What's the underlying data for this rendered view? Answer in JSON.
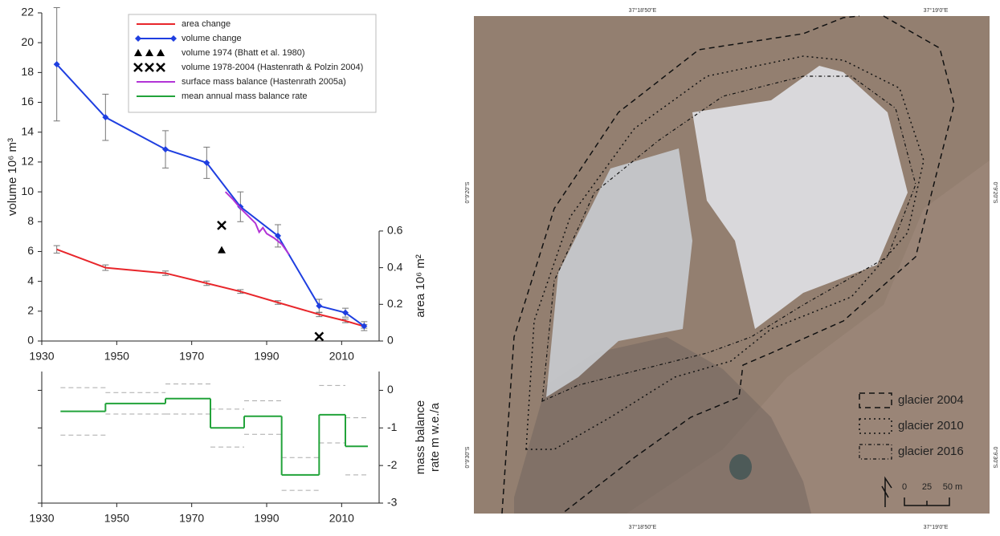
{
  "chart_data": [
    {
      "type": "line",
      "ylabel": "volume 10⁶ m³",
      "y2label": "area 10⁶ m²",
      "xlim": [
        1930,
        2020
      ],
      "xticks": [
        1930,
        1950,
        1970,
        1990,
        2010
      ],
      "ylim": [
        0,
        22
      ],
      "yticks": [
        0,
        2,
        4,
        6,
        8,
        10,
        12,
        14,
        16,
        18,
        20,
        22
      ],
      "y2lim": [
        0,
        1.79
      ],
      "y2ticks": [
        0,
        0.2,
        0.4,
        0.6
      ],
      "error_color": "#777777",
      "series": [
        {
          "name": "area change",
          "color": "#e8262b",
          "axis": "y2",
          "line": true,
          "marker": null,
          "x": [
            1934,
            1947,
            1963,
            1974,
            1983,
            1993,
            2004,
            2011,
            2016
          ],
          "values": [
            0.5,
            0.4,
            0.37,
            0.315,
            0.27,
            0.21,
            0.145,
            0.11,
            0.08
          ],
          "errors": [
            0.02,
            0.015,
            0.012,
            0.012,
            0.01,
            0.01,
            0.012,
            0.01,
            0.01
          ]
        },
        {
          "name": "volume change",
          "color": "#1f3fe0",
          "line": true,
          "marker": "diamond",
          "x": [
            1934,
            1947,
            1963,
            1974,
            1983,
            1993,
            2004,
            2011,
            2016
          ],
          "values": [
            18.55,
            15.0,
            12.85,
            11.95,
            9.0,
            7.05,
            2.35,
            1.9,
            1.0
          ],
          "errors": [
            3.8,
            1.55,
            1.25,
            1.05,
            1.0,
            0.75,
            0.45,
            0.3,
            0.3
          ]
        },
        {
          "name": "volume 1974 (Bhatt et al. 1980)",
          "color": "#000000",
          "line": false,
          "marker": "triangle",
          "x": [
            1978
          ],
          "values": [
            6.1
          ]
        },
        {
          "name": "volume 1978-2004 (Hastenrath & Polzin 2004)",
          "color": "#000000",
          "line": false,
          "marker": "x",
          "x": [
            1978,
            2004
          ],
          "values": [
            7.75,
            0.3
          ]
        },
        {
          "name": "surface mass balance (Hastenrath 2005a)",
          "color": "#b234d6",
          "line": true,
          "marker": null,
          "x": [
            1979,
            1981,
            1983,
            1985,
            1987,
            1988,
            1989,
            1990,
            1992,
            1994,
            1996
          ],
          "values": [
            10.0,
            9.5,
            8.9,
            8.4,
            7.9,
            7.3,
            7.6,
            7.2,
            6.9,
            6.5,
            5.8
          ]
        }
      ]
    },
    {
      "type": "step",
      "ylabel": [
        "mass balance",
        "rate m w.e./a"
      ],
      "xlim": [
        1930,
        2020
      ],
      "xticks": [
        1930,
        1950,
        1970,
        1990,
        2010
      ],
      "ylim": [
        -3,
        0.5
      ],
      "yticks": [
        0,
        -1,
        -2,
        -3
      ],
      "x_edges": [
        1935,
        1947,
        1963,
        1975,
        1984,
        1994,
        2004,
        2011,
        2017
      ],
      "bound_color": "#aaaaaa",
      "series": [
        {
          "name": "mean annual mass balance rate",
          "color": "#22a33a",
          "values": [
            -0.56,
            -0.35,
            -0.22,
            -1.0,
            -0.69,
            -2.25,
            -0.65,
            -1.49
          ],
          "upper": [
            0.07,
            -0.06,
            0.17,
            -0.5,
            -0.28,
            -1.79,
            0.13,
            -0.73
          ],
          "lower": [
            -1.19,
            -0.63,
            -0.63,
            -1.51,
            -1.17,
            -2.66,
            -1.4,
            -2.25
          ]
        }
      ]
    }
  ],
  "map": {
    "lon_labels": [
      "37°18'50\"E",
      "37°19'0\"E"
    ],
    "lat_labels": [
      "0°9'20\"S",
      "0°9'30\"S"
    ],
    "legend": [
      "glacier 2004",
      "glacier 2010",
      "glacier 2016"
    ],
    "scale_labels": [
      "0",
      "25",
      "50 m"
    ]
  }
}
